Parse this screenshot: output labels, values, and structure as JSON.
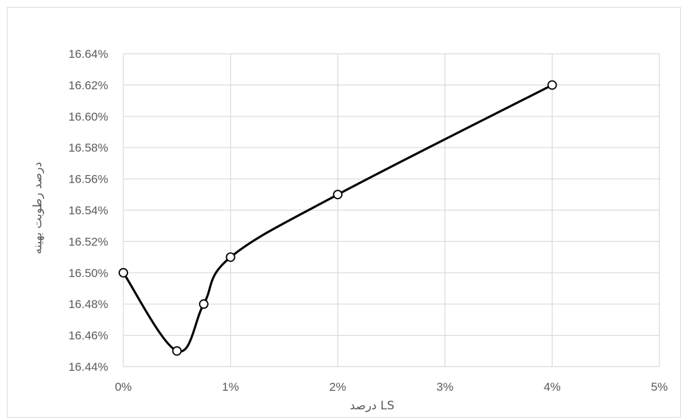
{
  "chart_data": {
    "type": "line",
    "title": "",
    "xlabel": "درصد LS",
    "ylabel": "درصد رطوبت بهینه",
    "x": [
      0,
      0.5,
      0.75,
      1,
      2,
      4
    ],
    "series": [
      {
        "values": [
          16.5,
          16.45,
          16.48,
          16.51,
          16.55,
          16.62
        ]
      }
    ],
    "xlim": [
      0,
      5
    ],
    "ylim": [
      16.44,
      16.64
    ],
    "x_ticks": [
      0,
      1,
      2,
      3,
      4,
      5
    ],
    "x_tick_labels": [
      "0%",
      "1%",
      "2%",
      "3%",
      "4%",
      "5%"
    ],
    "y_ticks": [
      16.44,
      16.46,
      16.48,
      16.5,
      16.52,
      16.54,
      16.56,
      16.58,
      16.6,
      16.62,
      16.64
    ],
    "y_tick_labels": [
      "16.44%",
      "16.46%",
      "16.48%",
      "16.50%",
      "16.52%",
      "16.54%",
      "16.56%",
      "16.58%",
      "16.60%",
      "16.62%",
      "16.64%"
    ],
    "grid": true,
    "line_style": "smooth",
    "marker": "open-circle",
    "legend": "none",
    "colors": {
      "line": "#000000",
      "grid": "#d9d9d9",
      "text": "#595959"
    }
  }
}
